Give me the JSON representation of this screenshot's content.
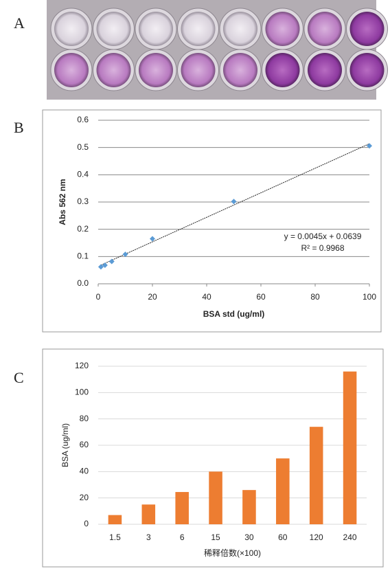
{
  "panel_labels": [
    "A",
    "B",
    "C"
  ],
  "chart_data": [
    {
      "type": "scatter",
      "x": [
        1,
        2.5,
        5,
        10,
        20,
        50,
        100
      ],
      "values": [
        0.062,
        0.068,
        0.082,
        0.108,
        0.165,
        0.302,
        0.506
      ],
      "color": "#5b9bd5",
      "xlim": [
        0,
        100
      ],
      "xticks": [
        0,
        20,
        40,
        60,
        80,
        100
      ],
      "ylim": [
        0,
        0.6
      ],
      "yticks": [
        {
          "value": 0,
          "label": "0.0"
        },
        0.1,
        0.2,
        0.3,
        0.4,
        0.5,
        0.6
      ],
      "grid": true,
      "x_label": "BSA std (ug/ml)",
      "y_label": "Abs 562 nm",
      "trendline": {
        "slope": 0.0045,
        "intercept": 0.0639
      },
      "annotations": [
        "y = 0.0045x + 0.0639",
        "R² = 0.9968"
      ]
    },
    {
      "type": "bar",
      "categories": [
        "1.5",
        "3",
        "6",
        "15",
        "30",
        "60",
        "120",
        "240"
      ],
      "values": [
        7,
        15,
        24.5,
        40,
        26,
        50,
        74,
        116
      ],
      "color": "#ed7d31",
      "ylim": [
        0,
        120
      ],
      "yticks": [
        0,
        20,
        40,
        60,
        80,
        100,
        120
      ],
      "grid": true,
      "x_label": "稀释倍数(×100)",
      "y_label": "BSA (ug/ml)"
    }
  ]
}
